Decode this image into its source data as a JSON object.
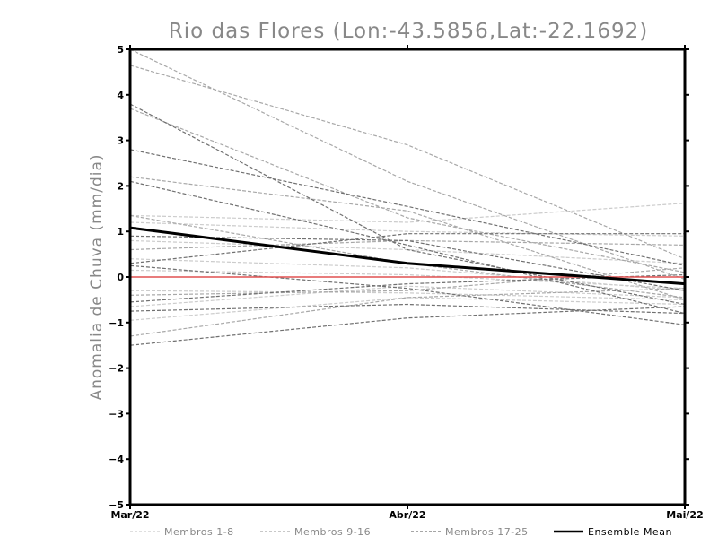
{
  "chart_data": {
    "type": "line",
    "title": "Rio das Flores (Lon:-43.5856,Lat:-22.1692)",
    "xlabel": "",
    "ylabel": "Anomalia de Chuva (mm/dia)",
    "categories": [
      "Mar/22",
      "Abr/22",
      "Mai/22"
    ],
    "ylim": [
      -5,
      5
    ],
    "yticks": [
      "5",
      "4",
      "3",
      "2",
      "1",
      "0",
      "-1",
      "-2",
      "-3",
      "-4",
      "-5"
    ],
    "grid": false,
    "reference_line": {
      "value": 0,
      "color": "#e05050"
    },
    "groups": [
      {
        "name": "Membros 1-8",
        "color": "#cccccc",
        "dashed": true,
        "members": [
          [
            1.35,
            1.2,
            1.62
          ],
          [
            1.2,
            1.0,
            0.9
          ],
          [
            0.8,
            0.6,
            0.3
          ],
          [
            0.4,
            0.2,
            -0.3
          ],
          [
            -0.3,
            -0.35,
            -0.5
          ],
          [
            -0.65,
            -0.2,
            -0.45
          ],
          [
            -0.95,
            -0.45,
            -0.6
          ],
          [
            0.15,
            0.05,
            -0.25
          ]
        ]
      },
      {
        "name": "Membros 9-16",
        "color": "#a8a8a8",
        "dashed": true,
        "members": [
          [
            5.0,
            2.1,
            -0.05
          ],
          [
            4.65,
            2.9,
            0.4
          ],
          [
            3.7,
            1.3,
            0.1
          ],
          [
            2.2,
            1.45,
            -0.5
          ],
          [
            0.6,
            0.8,
            0.7
          ],
          [
            -0.4,
            -0.3,
            0.2
          ],
          [
            -1.3,
            -0.45,
            -0.25
          ],
          [
            1.35,
            0.3,
            -0.45
          ]
        ]
      },
      {
        "name": "Membros 17-25",
        "color": "#707070",
        "dashed": true,
        "members": [
          [
            3.8,
            0.6,
            -0.6
          ],
          [
            2.8,
            1.55,
            0.25
          ],
          [
            2.1,
            0.7,
            -0.8
          ],
          [
            0.9,
            0.8,
            -0.3
          ],
          [
            0.3,
            0.95,
            0.95
          ],
          [
            -0.75,
            -0.6,
            -0.8
          ],
          [
            -1.5,
            -0.9,
            -0.65
          ],
          [
            -0.55,
            -0.15,
            0.05
          ],
          [
            0.25,
            -0.25,
            -1.05
          ]
        ]
      }
    ],
    "ensemble_mean": {
      "name": "Ensemble Mean",
      "color": "#000000",
      "values": [
        1.08,
        0.3,
        -0.15
      ]
    },
    "legend": {
      "placement": "bottom",
      "entries": [
        "Membros 1-8",
        "Membros 9-16",
        "Membros 17-25",
        "Ensemble Mean"
      ],
      "colors": [
        "#cccccc",
        "#a8a8a8",
        "#707070",
        "#000000"
      ]
    }
  }
}
